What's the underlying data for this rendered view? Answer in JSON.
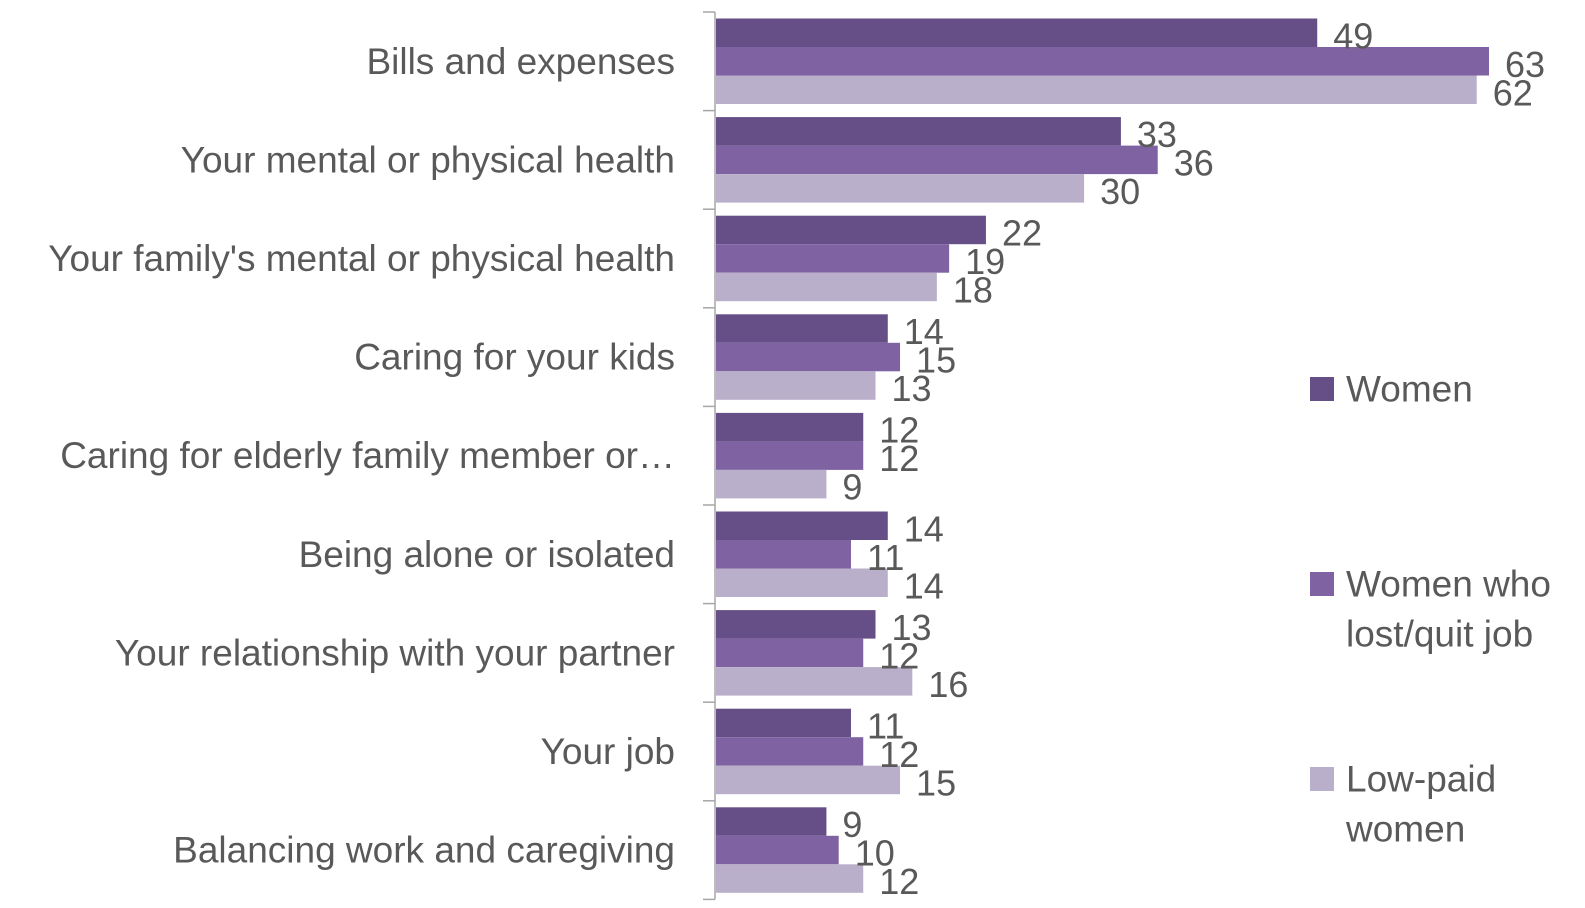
{
  "chart_data": {
    "type": "bar",
    "orientation": "horizontal",
    "title": "",
    "xlabel": "",
    "ylabel": "",
    "xlim": [
      0,
      65
    ],
    "grid": false,
    "legend_position": "right",
    "categories": [
      "Bills and expenses",
      "Your mental or physical health",
      "Your family's mental or physical health",
      "Caring for your kids",
      "Caring for elderly family member or…",
      "Being alone or isolated",
      "Your relationship with your partner",
      "Your job",
      "Balancing work and caregiving"
    ],
    "series": [
      {
        "name": "Women",
        "color": "#664E86",
        "values": [
          49,
          33,
          22,
          14,
          12,
          14,
          13,
          11,
          9
        ]
      },
      {
        "name": "Women who lost/quit job",
        "color": "#7F62A2",
        "values": [
          63,
          36,
          19,
          15,
          12,
          11,
          12,
          12,
          10
        ]
      },
      {
        "name": "Low-paid women",
        "color": "#BAAFCB",
        "values": [
          62,
          30,
          18,
          13,
          9,
          14,
          16,
          15,
          12
        ]
      }
    ]
  },
  "legend": {
    "entries": [
      {
        "lines": [
          "Women"
        ]
      },
      {
        "lines": [
          "Women who",
          "lost/quit job"
        ]
      },
      {
        "lines": [
          "Low-paid",
          "women"
        ]
      }
    ]
  },
  "colors": {
    "axis": "#A6A6A6",
    "text": "#595959"
  }
}
